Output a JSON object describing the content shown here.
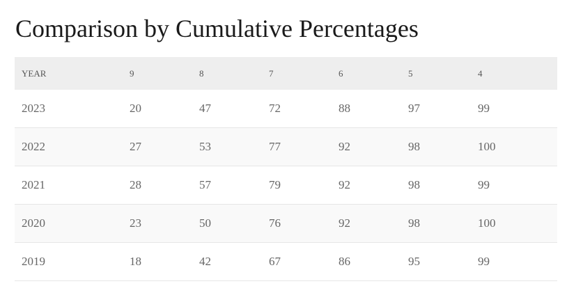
{
  "title": "Comparison by Cumulative Percentages",
  "table": {
    "headers": [
      "YEAR",
      "9",
      "8",
      "7",
      "6",
      "5",
      "4"
    ],
    "rows": [
      [
        "2023",
        "20",
        "47",
        "72",
        "88",
        "97",
        "99"
      ],
      [
        "2022",
        "27",
        "53",
        "77",
        "92",
        "98",
        "100"
      ],
      [
        "2021",
        "28",
        "57",
        "79",
        "92",
        "98",
        "99"
      ],
      [
        "2020",
        "23",
        "50",
        "76",
        "92",
        "98",
        "100"
      ],
      [
        "2019",
        "18",
        "42",
        "67",
        "86",
        "95",
        "99"
      ]
    ]
  },
  "colors": {
    "header_background": "#eeeeee",
    "alternate_row_background": "#f9f9f9",
    "row_divider": "#e6e6e6",
    "title_text": "#1a1a1a",
    "body_text": "#666666"
  }
}
